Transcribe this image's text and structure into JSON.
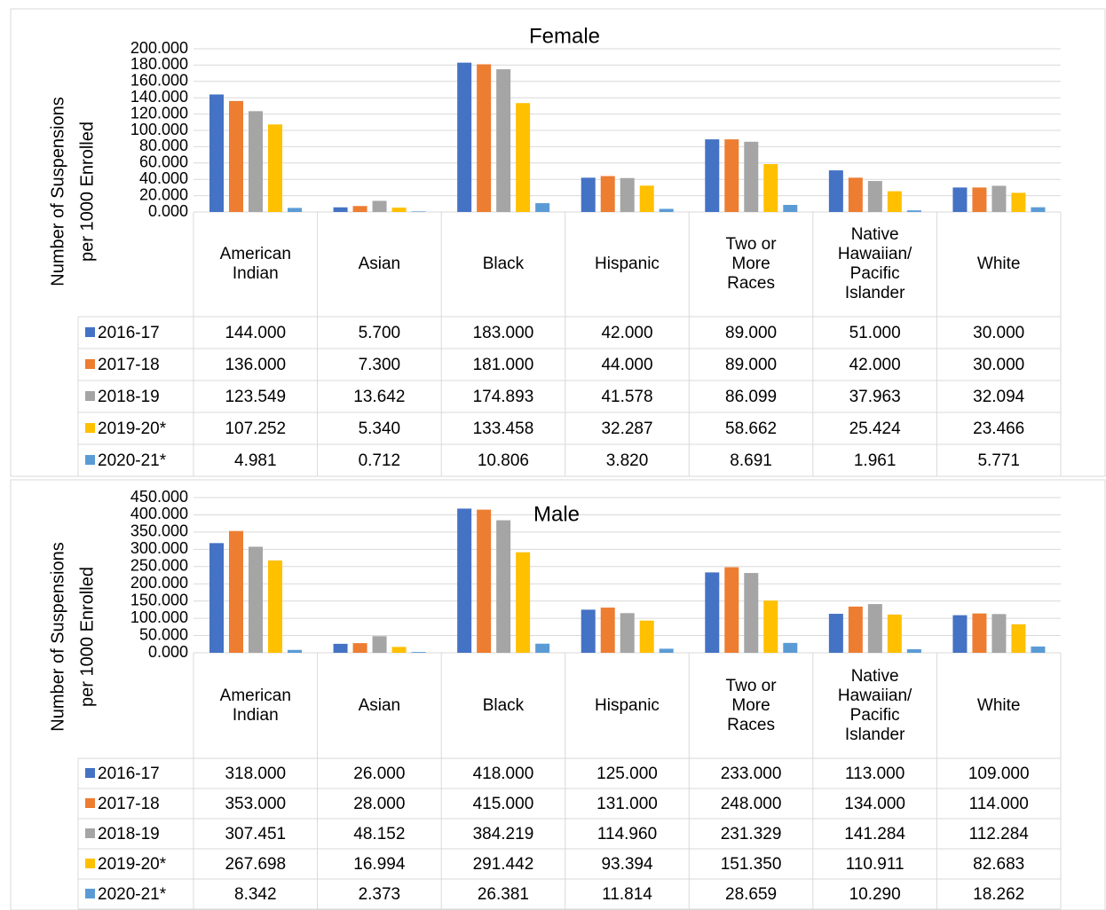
{
  "chart_data": [
    {
      "type": "bar",
      "title": "Female",
      "y_label": [
        "Number of Suspensions",
        "per 1000 Enrolled"
      ],
      "categories": [
        "American Indian",
        "Asian",
        "Black",
        "Hispanic",
        "Two or More Races",
        "Native Hawaiian/ Pacific Islander",
        "White"
      ],
      "series": [
        {
          "name": "2016-17",
          "color": "#4472c4",
          "values": [
            144,
            5.7,
            183,
            42,
            89,
            51,
            30
          ],
          "value_labels": [
            "144.000",
            "5.700",
            "183.000",
            "42.000",
            "89.000",
            "51.000",
            "30.000"
          ]
        },
        {
          "name": "2017-18",
          "color": "#ed7d31",
          "values": [
            136,
            7.3,
            181,
            44,
            89,
            42,
            30
          ],
          "value_labels": [
            "136.000",
            "7.300",
            "181.000",
            "44.000",
            "89.000",
            "42.000",
            "30.000"
          ]
        },
        {
          "name": "2018-19",
          "color": "#a5a5a5",
          "values": [
            123.549,
            13.642,
            174.893,
            41.578,
            86.099,
            37.963,
            32.094
          ],
          "value_labels": [
            "123.549",
            "13.642",
            "174.893",
            "41.578",
            "86.099",
            "37.963",
            "32.094"
          ]
        },
        {
          "name": "2019-20*",
          "color": "#ffc000",
          "values": [
            107.252,
            5.34,
            133.458,
            32.287,
            58.662,
            25.424,
            23.466
          ],
          "value_labels": [
            "107.252",
            "5.340",
            "133.458",
            "32.287",
            "58.662",
            "25.424",
            "23.466"
          ]
        },
        {
          "name": "2020-21*",
          "color": "#5b9bd5",
          "values": [
            4.981,
            0.712,
            10.806,
            3.82,
            8.691,
            1.961,
            5.771
          ],
          "value_labels": [
            "4.981",
            "0.712",
            "10.806",
            "3.820",
            "8.691",
            "1.961",
            "5.771"
          ]
        }
      ],
      "ylim": [
        0,
        200
      ],
      "yticks": [
        {
          "value": 0,
          "label": "0.000"
        },
        {
          "value": 20,
          "label": "20.000"
        },
        {
          "value": 40,
          "label": "40.000"
        },
        {
          "value": 60,
          "label": "60.000"
        },
        {
          "value": 80,
          "label": "80.000"
        },
        {
          "value": 100,
          "label": "100.000"
        },
        {
          "value": 120,
          "label": "120.000"
        },
        {
          "value": 140,
          "label": "140.000"
        },
        {
          "value": 160,
          "label": "160.000"
        },
        {
          "value": 180,
          "label": "180.000"
        },
        {
          "value": 200,
          "label": "200.000"
        }
      ],
      "grid": true
    },
    {
      "type": "bar",
      "title": "Male",
      "y_label": [
        "Number of Suspensions",
        "per 1000 Enrolled"
      ],
      "categories": [
        "American Indian",
        "Asian",
        "Black",
        "Hispanic",
        "Two or More Races",
        "Native Hawaiian/ Pacific Islander",
        "White"
      ],
      "series": [
        {
          "name": "2016-17",
          "color": "#4472c4",
          "values": [
            318,
            26,
            418,
            125,
            233,
            113,
            109
          ],
          "value_labels": [
            "318.000",
            "26.000",
            "418.000",
            "125.000",
            "233.000",
            "113.000",
            "109.000"
          ]
        },
        {
          "name": "2017-18",
          "color": "#ed7d31",
          "values": [
            353,
            28,
            415,
            131,
            248,
            134,
            114
          ],
          "value_labels": [
            "353.000",
            "28.000",
            "415.000",
            "131.000",
            "248.000",
            "134.000",
            "114.000"
          ]
        },
        {
          "name": "2018-19",
          "color": "#a5a5a5",
          "values": [
            307.451,
            48.152,
            384.219,
            114.96,
            231.329,
            141.284,
            112.284
          ],
          "value_labels": [
            "307.451",
            "48.152",
            "384.219",
            "114.960",
            "231.329",
            "141.284",
            "112.284"
          ]
        },
        {
          "name": "2019-20*",
          "color": "#ffc000",
          "values": [
            267.698,
            16.994,
            291.442,
            93.394,
            151.35,
            110.911,
            82.683
          ],
          "value_labels": [
            "267.698",
            "16.994",
            "291.442",
            "93.394",
            "151.350",
            "110.911",
            "82.683"
          ]
        },
        {
          "name": "2020-21*",
          "color": "#5b9bd5",
          "values": [
            8.342,
            2.373,
            26.381,
            11.814,
            28.659,
            10.29,
            18.262
          ],
          "value_labels": [
            "8.342",
            "2.373",
            "26.381",
            "11.814",
            "28.659",
            "10.290",
            "18.262"
          ]
        }
      ],
      "ylim": [
        0,
        450
      ],
      "yticks": [
        {
          "value": 0,
          "label": "0.000"
        },
        {
          "value": 50,
          "label": "50.000"
        },
        {
          "value": 100,
          "label": "100.000"
        },
        {
          "value": 150,
          "label": "150.000"
        },
        {
          "value": 200,
          "label": "200.000"
        },
        {
          "value": 250,
          "label": "250.000"
        },
        {
          "value": 300,
          "label": "300.000"
        },
        {
          "value": 350,
          "label": "350.000"
        },
        {
          "value": 400,
          "label": "400.000"
        },
        {
          "value": 450,
          "label": "450.000"
        }
      ],
      "grid": true
    }
  ]
}
